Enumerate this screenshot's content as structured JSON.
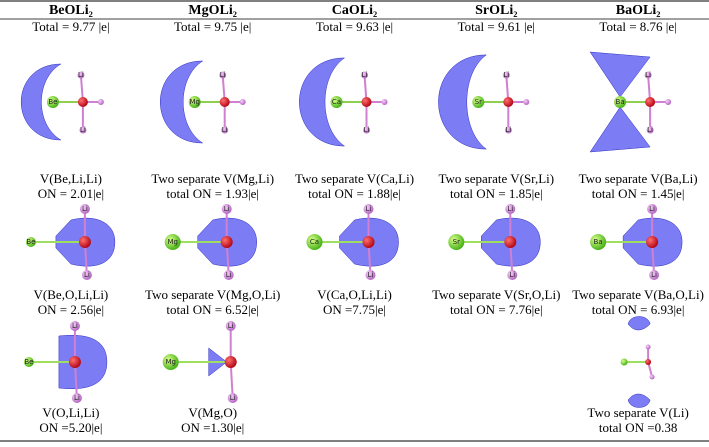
{
  "columns": [
    {
      "header": "BeOLi₂",
      "total": "Total = 9.77 |e|",
      "metal": "Be"
    },
    {
      "header": "MgOLi₂",
      "total": "Total = 9.75 |e|",
      "metal": "Mg"
    },
    {
      "header": "CaOLi₂",
      "total": "Total = 9.63 |e|",
      "metal": "Ca"
    },
    {
      "header": "SrOLi₂",
      "total": "Total = 9.61 |e|",
      "metal": "Sr"
    },
    {
      "header": "BaOLi₂",
      "total": "Total = 8.76 |e|",
      "metal": "Ba"
    }
  ],
  "ligand": "Li",
  "rows": [
    [
      [
        "V(Be,Li,Li)",
        "ON = 2.01|e|"
      ],
      [
        "Two separate V(Mg,Li)",
        "total ON = 1.93|e|"
      ],
      [
        "Two separate V(Ca,Li)",
        "total ON = 1.88|e|"
      ],
      [
        "Two separate V(Sr,Li)",
        "total ON = 1.85|e|"
      ],
      [
        "Two separate V(Ba,Li)",
        "total ON = 1.45|e|"
      ]
    ],
    [
      [
        "V(Be,O,Li,Li)",
        "ON = 2.56|e|"
      ],
      [
        "Two separate V(Mg,O,Li)",
        "total ON = 6.52|e|"
      ],
      [
        "V(Ca,O,Li,Li)",
        "ON =7.75|e|"
      ],
      [
        "Two separate V(Sr,O,Li)",
        "total ON = 7.76|e|"
      ],
      [
        "Two separate V(Ba,O,Li)",
        "total ON = 6.93|e|"
      ]
    ],
    [
      [
        "V(O,Li,Li)",
        "ON =5.20|e|"
      ],
      [
        "V(Mg,O)",
        "ON =1.30|e|"
      ],
      null,
      null,
      [
        "Two separate V(Li)",
        "total ON =0.38"
      ]
    ]
  ]
}
